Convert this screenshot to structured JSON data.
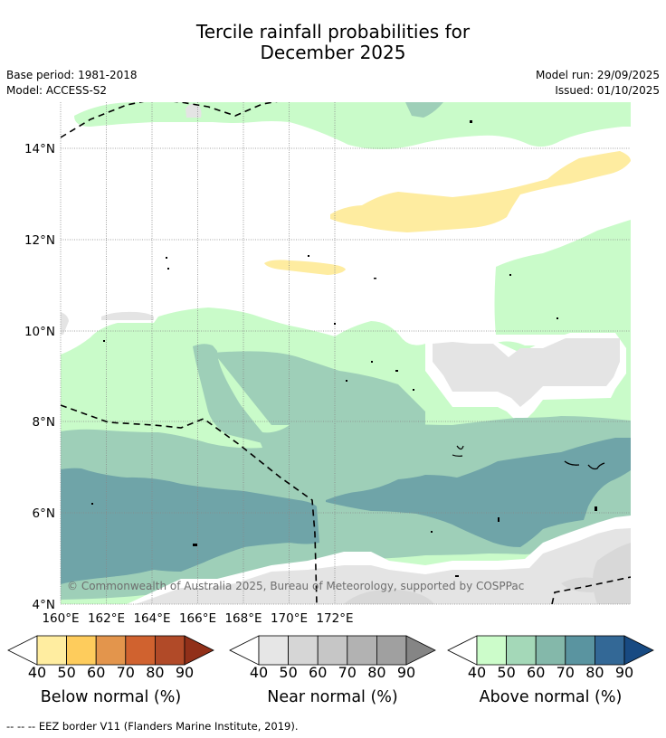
{
  "title": {
    "line1": "Tercile rainfall probabilities for",
    "line2": "December 2025"
  },
  "meta": {
    "base_period": "Base period: 1981-2018",
    "model": "Model: ACCESS-S2",
    "model_run": "Model run: 29/09/2025",
    "issued": "Issued: 01/10/2025"
  },
  "map": {
    "lon_ticks": [
      "160°E",
      "162°E",
      "164°E",
      "166°E",
      "168°E",
      "170°E",
      "172°E"
    ],
    "lat_ticks": [
      "14°N",
      "12°N",
      "10°N",
      "8°N",
      "6°N",
      "4°N"
    ],
    "credit": "© Commonwealth of Australia 2025, Bureau of Meteorology, supported by COSPPac",
    "colors": {
      "below_50": "#feeca0",
      "near_40": "#e4e4e4",
      "near_50": "#d8d8d8",
      "above_40": "#c9fbc9",
      "above_50": "#9ecfb8",
      "above_60": "#6fa4a8"
    }
  },
  "colorbars": [
    {
      "title": "Below normal (%)",
      "ticks": [
        "40",
        "50",
        "60",
        "70",
        "80",
        "90"
      ],
      "colors": [
        "#ffffff",
        "#ffeda0",
        "#fecc5c",
        "#e3954c",
        "#d0622f",
        "#b14a28",
        "#913019"
      ]
    },
    {
      "title": "Near normal (%)",
      "ticks": [
        "40",
        "50",
        "60",
        "70",
        "80",
        "90"
      ],
      "colors": [
        "#ffffff",
        "#e6e6e6",
        "#d6d6d6",
        "#c6c6c6",
        "#b2b2b2",
        "#a0a0a0",
        "#858585"
      ]
    },
    {
      "title": "Above normal (%)",
      "ticks": [
        "40",
        "50",
        "60",
        "70",
        "80",
        "90"
      ],
      "colors": [
        "#ffffff",
        "#ccfcca",
        "#a4d8b8",
        "#84b8aa",
        "#5a94a0",
        "#336896",
        "#184a82"
      ]
    }
  ],
  "footnote": "--  --  -- EEZ border V11 (Flanders Marine Institute, 2019)."
}
